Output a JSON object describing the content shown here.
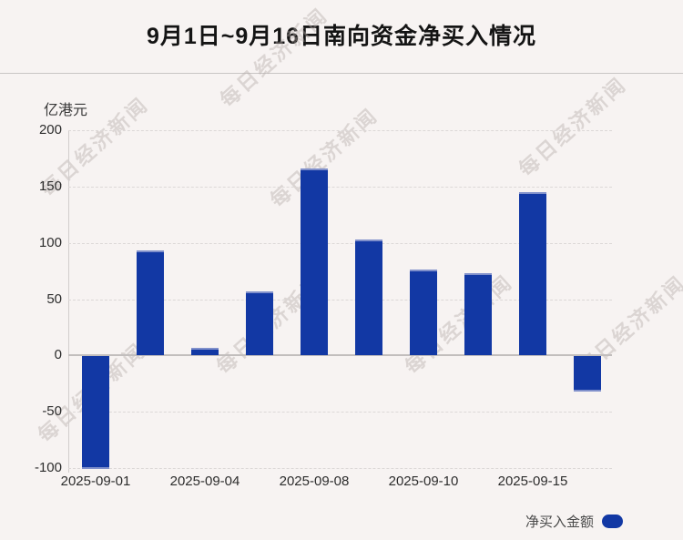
{
  "header": {
    "title": "9月1日~9月16日南向资金净买入情况"
  },
  "watermark": {
    "text": "每日经济新闻"
  },
  "legend": {
    "label": "净买入金额"
  },
  "colors": {
    "background": "#f7f3f2",
    "bar": "#1238a4",
    "bar_cap": "#8090cb",
    "title_text": "#141414"
  },
  "chart_data": {
    "type": "bar",
    "title": "9月1日~9月16日南向资金净买入情况",
    "y_unit": "亿港元",
    "series": [
      {
        "name": "净买入金额",
        "values": [
          -100,
          93,
          7,
          57,
          166,
          103,
          76,
          73,
          145,
          -31
        ]
      }
    ],
    "x_tick_labels": [
      "2025-09-01",
      "2025-09-04",
      "2025-09-08",
      "2025-09-10",
      "2025-09-15"
    ],
    "x_tick_bar_indices": [
      0,
      2,
      4,
      6,
      8
    ],
    "y_ticks": [
      200,
      150,
      100,
      50,
      0,
      -50,
      -100
    ],
    "ylim": [
      -100,
      200
    ],
    "grid": "horizontal-dashed",
    "legend_position": "bottom-right"
  }
}
